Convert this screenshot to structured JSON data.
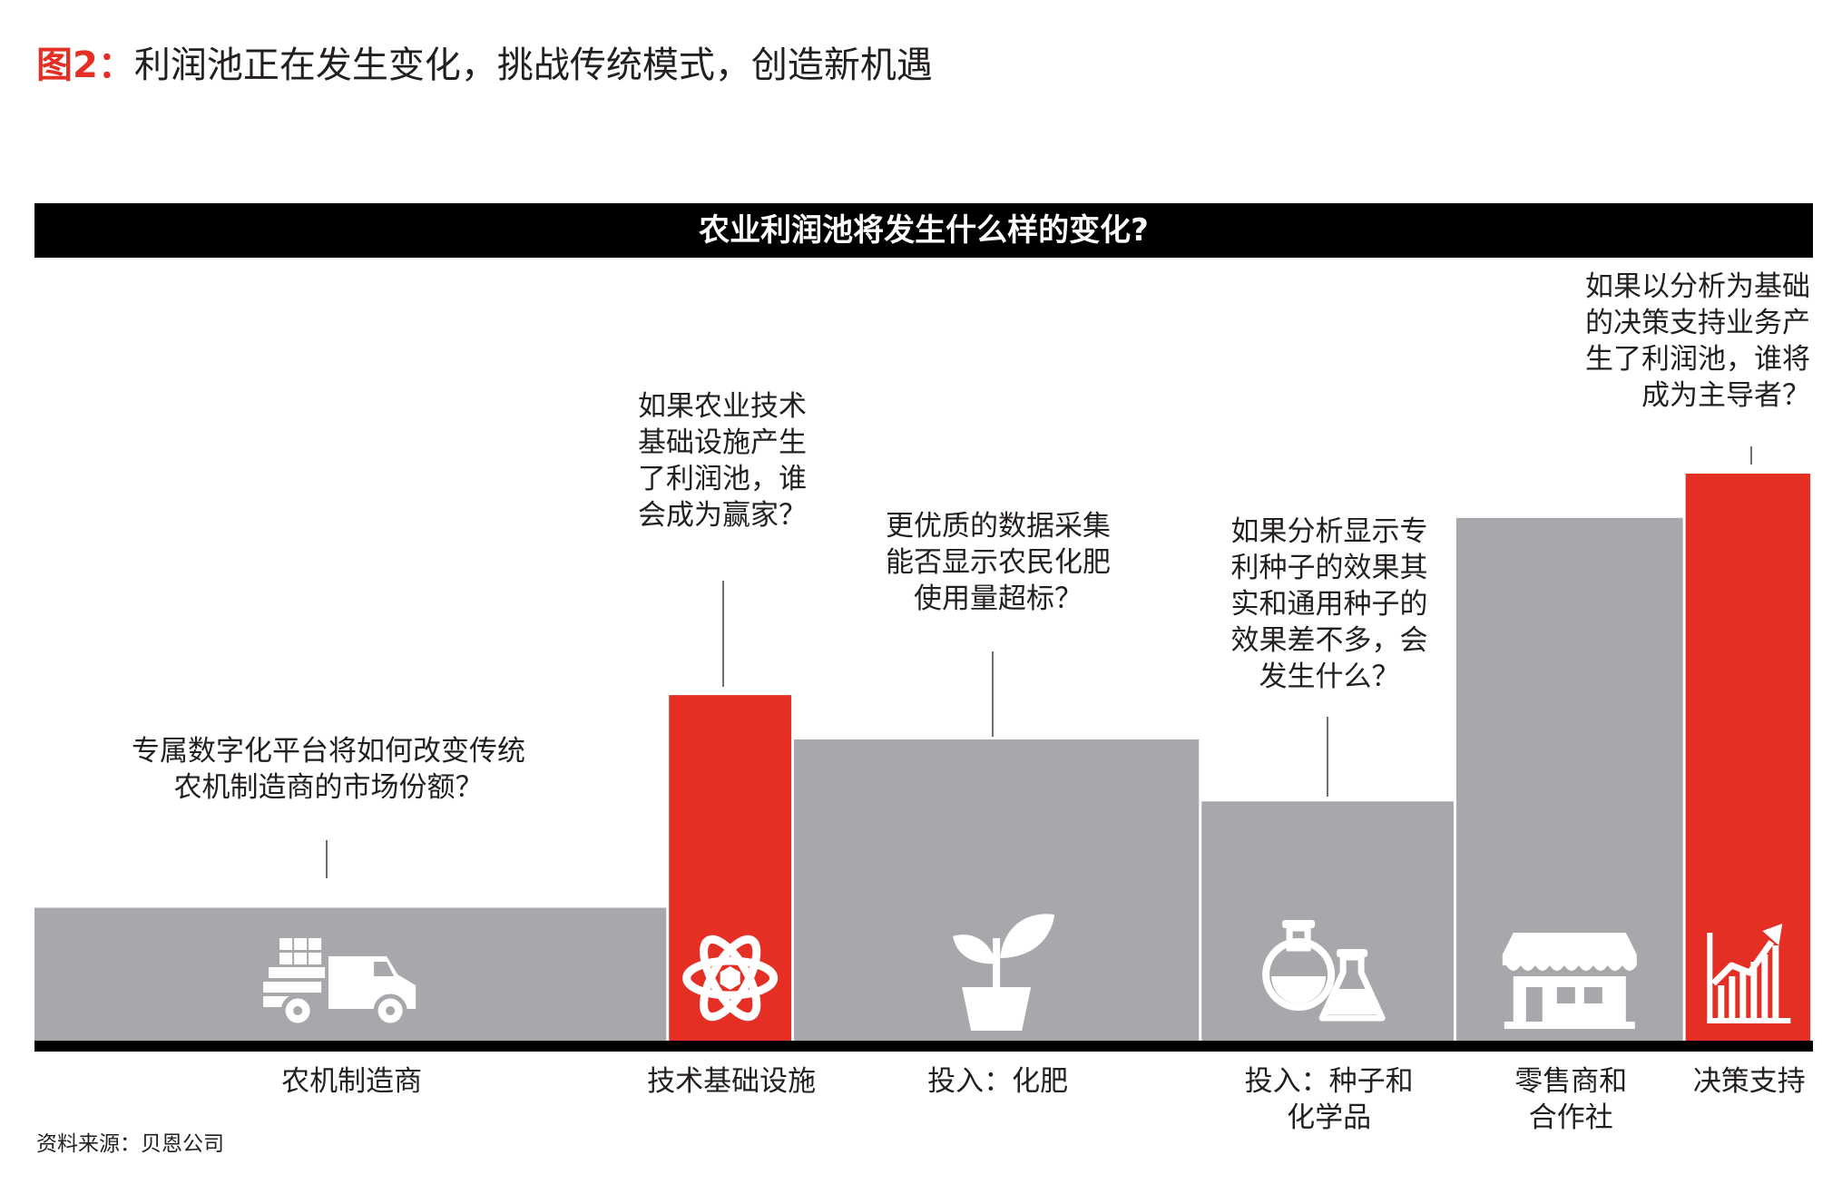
{
  "figure": {
    "label": "图2：",
    "title": "利润池正在发生变化，挑战传统模式，创造新机遇"
  },
  "banner": {
    "text": "农业利润池将发生什么样的变化?"
  },
  "colors": {
    "gray": "#a7a8ac",
    "red": "#e52f25",
    "black": "#000000",
    "white": "#ffffff",
    "text": "#231f20"
  },
  "chart_data": {
    "type": "bar",
    "title": "农业利润池将发生什么样的变化?",
    "xlabel": "",
    "ylabel": "",
    "categories": [
      "农机制造商",
      "技术基础设施",
      "投入：化肥",
      "投入：种子和化学品",
      "零售商和合作社",
      "决策支持"
    ],
    "category_lines": [
      [
        "农机制造商"
      ],
      [
        "技术基础设施"
      ],
      [
        "投入：化肥"
      ],
      [
        "投入：种子和",
        "化学品"
      ],
      [
        "零售商和",
        "合作社"
      ],
      [
        "决策支持"
      ]
    ],
    "values": [
      15,
      39,
      34,
      27,
      59,
      64
    ],
    "widths": [
      27.4,
      5.4,
      17.6,
      11.0,
      9.9,
      5.5
    ],
    "highlighted": [
      false,
      true,
      false,
      false,
      false,
      true
    ],
    "icons": [
      "truck-icon",
      "atom-icon",
      "plant-icon",
      "flask-icon",
      "storefront-icon",
      "growth-chart-icon"
    ],
    "annotations": [
      {
        "bar": 0,
        "lines": [
          "专属数字化平台将如何改变传统",
          "农机制造商的市场份额？"
        ]
      },
      {
        "bar": 1,
        "lines": [
          "如果农业技术",
          "基础设施产生",
          "了利润池，谁",
          "会成为赢家？"
        ]
      },
      {
        "bar": 2,
        "lines": [
          "更优质的数据采集",
          "能否显示农民化肥",
          "使用量超标？"
        ]
      },
      {
        "bar": 3,
        "lines": [
          "如果分析显示专",
          "利种子的效果其",
          "实和通用种子的",
          "效果差不多，会",
          "发生什么？"
        ]
      },
      {
        "bar": 5,
        "lines": [
          "如果以分析为基础",
          "的决策支持业务产",
          "生了利润池，谁将",
          "成为主导者？"
        ]
      }
    ],
    "grid": false,
    "legend": "none"
  },
  "source": {
    "text": "资料来源：贝恩公司"
  }
}
